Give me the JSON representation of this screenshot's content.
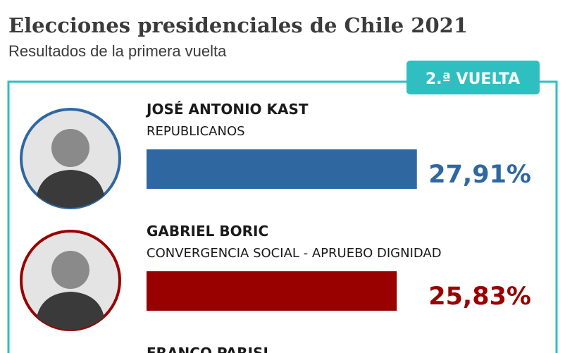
{
  "chart_data": {
    "type": "bar",
    "title": "Elecciones presidenciales de Chile 2021",
    "subtitle": "Resultados de la primera vuelta",
    "badge": "2.ª VUELTA",
    "categories": [
      "JOSÉ ANTONIO KAST",
      "GABRIEL BORIC"
    ],
    "parties": [
      "REPUBLICANOS",
      "CONVERGENCIA SOCIAL - APRUEBO DIGNIDAD"
    ],
    "values": [
      27.91,
      25.83
    ],
    "value_labels": [
      "27,91%",
      "25,83%"
    ],
    "colors": [
      "#2f67a1",
      "#990000"
    ],
    "truncated_label": "FRANCO PARISI"
  }
}
